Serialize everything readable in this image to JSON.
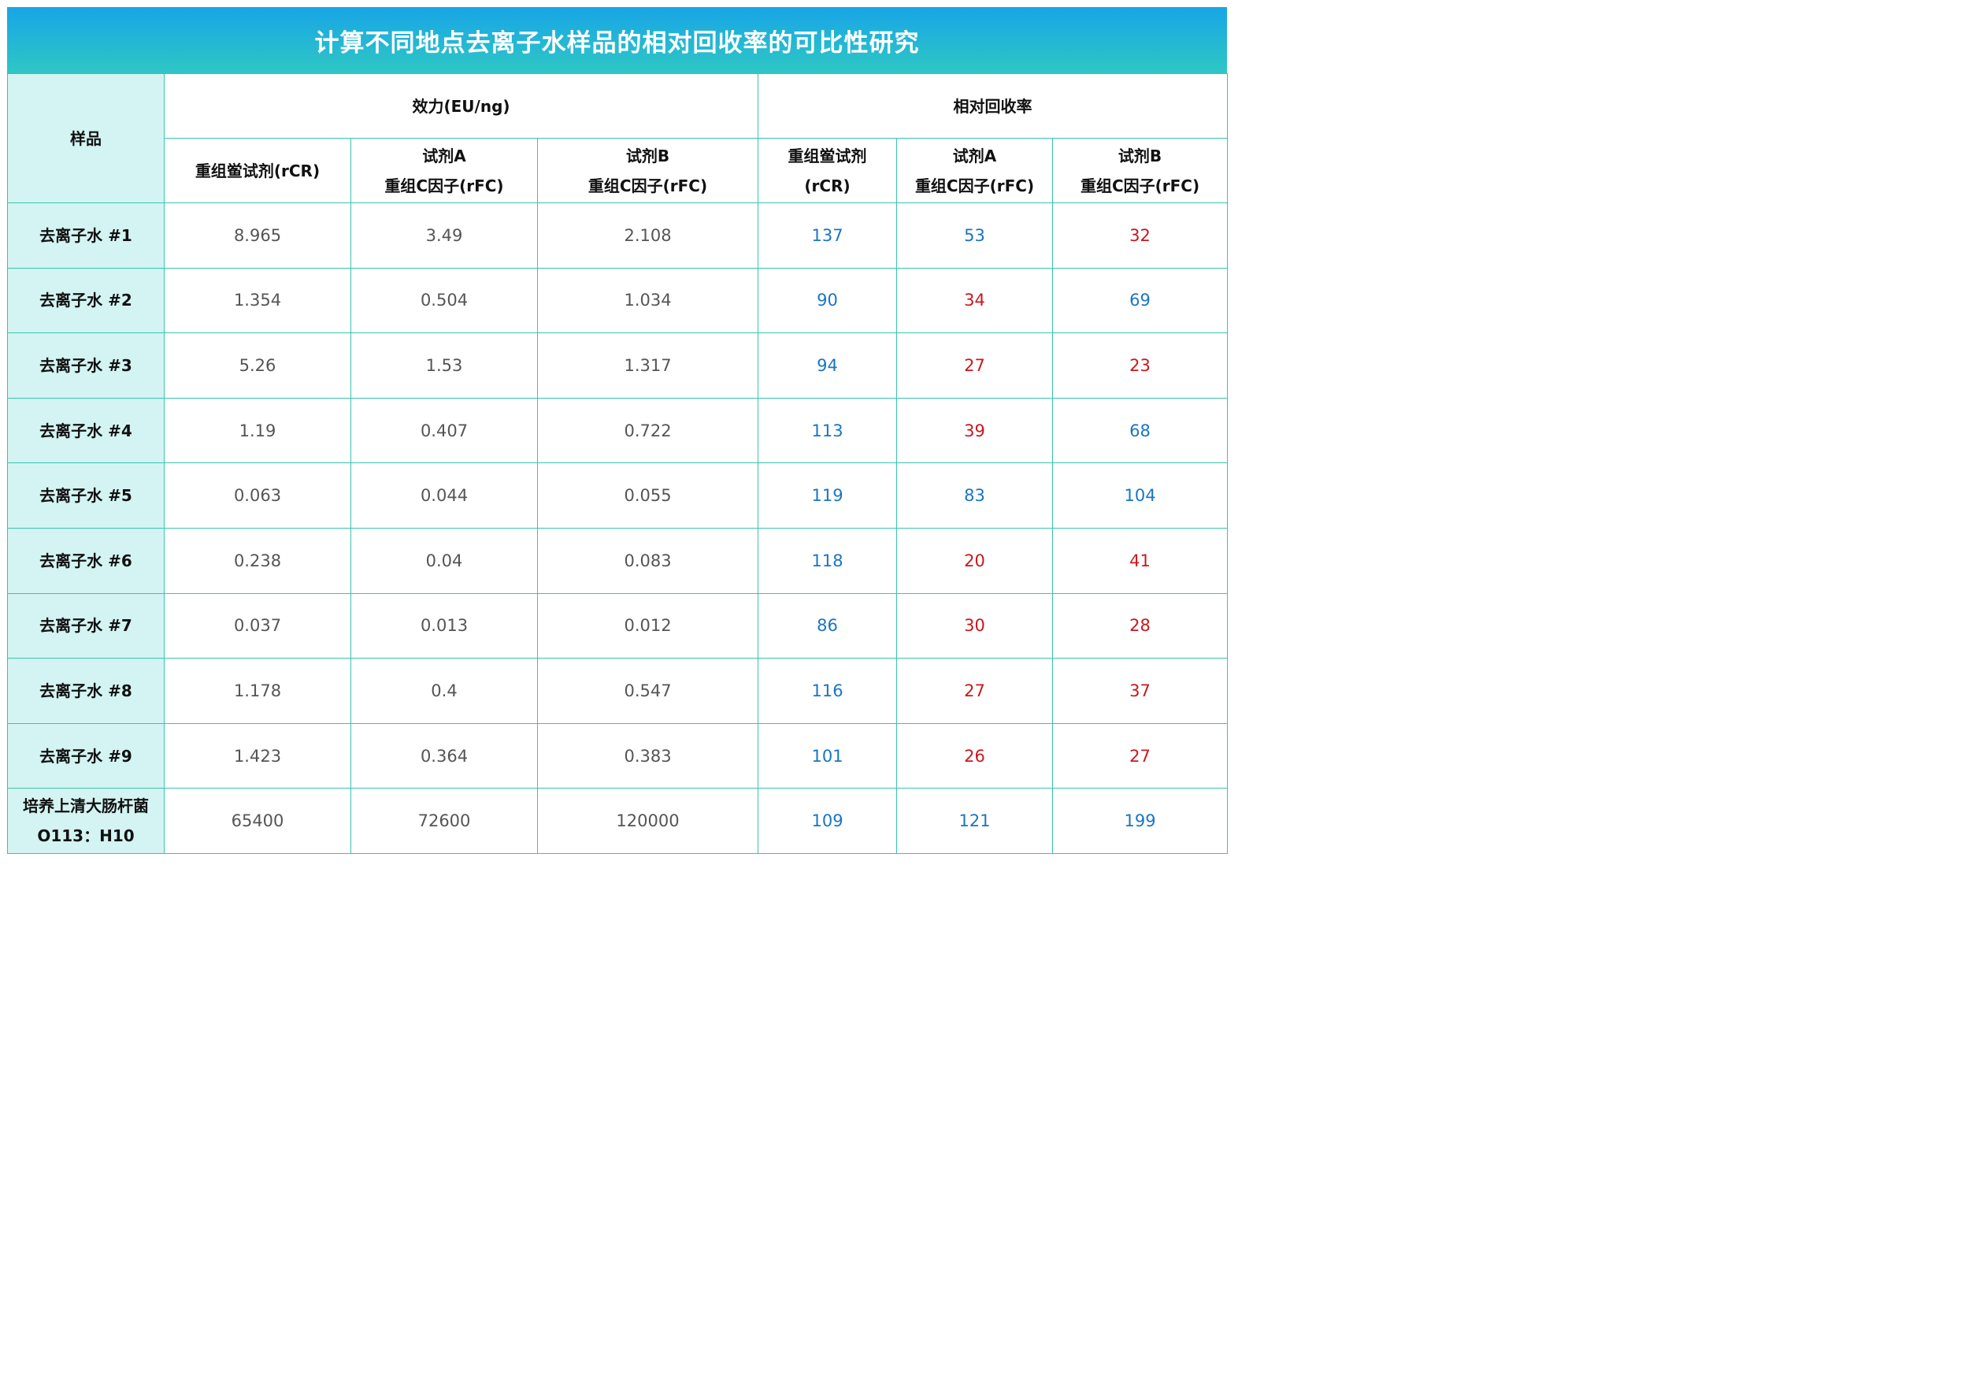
{
  "title": "计算不同地点去离子水样品的相对回收率的可比性研究",
  "colors": {
    "high": "#1a75c4",
    "low": "#c8181d",
    "header_gradient_top": "#18a5e6",
    "header_gradient_bottom": "#2ec7c4",
    "sample_bg": "#d3f4f2",
    "border": "#39c4ad"
  },
  "headers": {
    "sample": "样品",
    "potency_group": "效力(EU/ng)",
    "recovery_group": "相对回收率",
    "potency_cols": [
      {
        "line1": "重组鲎试剂(rCR)",
        "line2": ""
      },
      {
        "line1": "试剂A",
        "line2": "重组C因子(rFC)"
      },
      {
        "line1": "试剂B",
        "line2": "重组C因子(rFC)"
      }
    ],
    "recovery_cols": [
      {
        "line1": "重组鲎试剂",
        "line2": "(rCR)"
      },
      {
        "line1": "试剂A",
        "line2": "重组C因子(rFC)"
      },
      {
        "line1": "试剂B",
        "line2": "重组C因子(rFC)"
      }
    ]
  },
  "rows": [
    {
      "sample": [
        "去离子水 #1",
        ""
      ],
      "potency": [
        "8.965",
        "3.49",
        "2.108"
      ],
      "recovery": [
        {
          "v": "137",
          "c": "high"
        },
        {
          "v": "53",
          "c": "high"
        },
        {
          "v": "32",
          "c": "low"
        }
      ]
    },
    {
      "sample": [
        "去离子水 #2",
        ""
      ],
      "potency": [
        "1.354",
        "0.504",
        "1.034"
      ],
      "recovery": [
        {
          "v": "90",
          "c": "high"
        },
        {
          "v": "34",
          "c": "low"
        },
        {
          "v": "69",
          "c": "high"
        }
      ]
    },
    {
      "sample": [
        "去离子水 #3",
        ""
      ],
      "potency": [
        "5.26",
        "1.53",
        "1.317"
      ],
      "recovery": [
        {
          "v": "94",
          "c": "high"
        },
        {
          "v": "27",
          "c": "low"
        },
        {
          "v": "23",
          "c": "low"
        }
      ]
    },
    {
      "sample": [
        "去离子水 #4",
        ""
      ],
      "potency": [
        "1.19",
        "0.407",
        "0.722"
      ],
      "recovery": [
        {
          "v": "113",
          "c": "high"
        },
        {
          "v": "39",
          "c": "low"
        },
        {
          "v": "68",
          "c": "high"
        }
      ]
    },
    {
      "sample": [
        "去离子水 #5",
        ""
      ],
      "potency": [
        "0.063",
        "0.044",
        "0.055"
      ],
      "recovery": [
        {
          "v": "119",
          "c": "high"
        },
        {
          "v": "83",
          "c": "high"
        },
        {
          "v": "104",
          "c": "high"
        }
      ]
    },
    {
      "sample": [
        "去离子水 #6",
        ""
      ],
      "potency": [
        "0.238",
        "0.04",
        "0.083"
      ],
      "recovery": [
        {
          "v": "118",
          "c": "high"
        },
        {
          "v": "20",
          "c": "low"
        },
        {
          "v": "41",
          "c": "low"
        }
      ]
    },
    {
      "sample": [
        "去离子水 #7",
        ""
      ],
      "potency": [
        "0.037",
        "0.013",
        "0.012"
      ],
      "recovery": [
        {
          "v": "86",
          "c": "high"
        },
        {
          "v": "30",
          "c": "low"
        },
        {
          "v": "28",
          "c": "low"
        }
      ]
    },
    {
      "sample": [
        "去离子水 #8",
        ""
      ],
      "potency": [
        "1.178",
        "0.4",
        "0.547"
      ],
      "recovery": [
        {
          "v": "116",
          "c": "high"
        },
        {
          "v": "27",
          "c": "low"
        },
        {
          "v": "37",
          "c": "low"
        }
      ]
    },
    {
      "sample": [
        "去离子水 #9",
        ""
      ],
      "potency": [
        "1.423",
        "0.364",
        "0.383"
      ],
      "recovery": [
        {
          "v": "101",
          "c": "high"
        },
        {
          "v": "26",
          "c": "low"
        },
        {
          "v": "27",
          "c": "low"
        }
      ]
    },
    {
      "sample": [
        "培养上清大肠杆菌",
        "O113：H10"
      ],
      "potency": [
        "65400",
        "72600",
        "120000"
      ],
      "recovery": [
        {
          "v": "109",
          "c": "high"
        },
        {
          "v": "121",
          "c": "high"
        },
        {
          "v": "199",
          "c": "high"
        }
      ]
    }
  ]
}
